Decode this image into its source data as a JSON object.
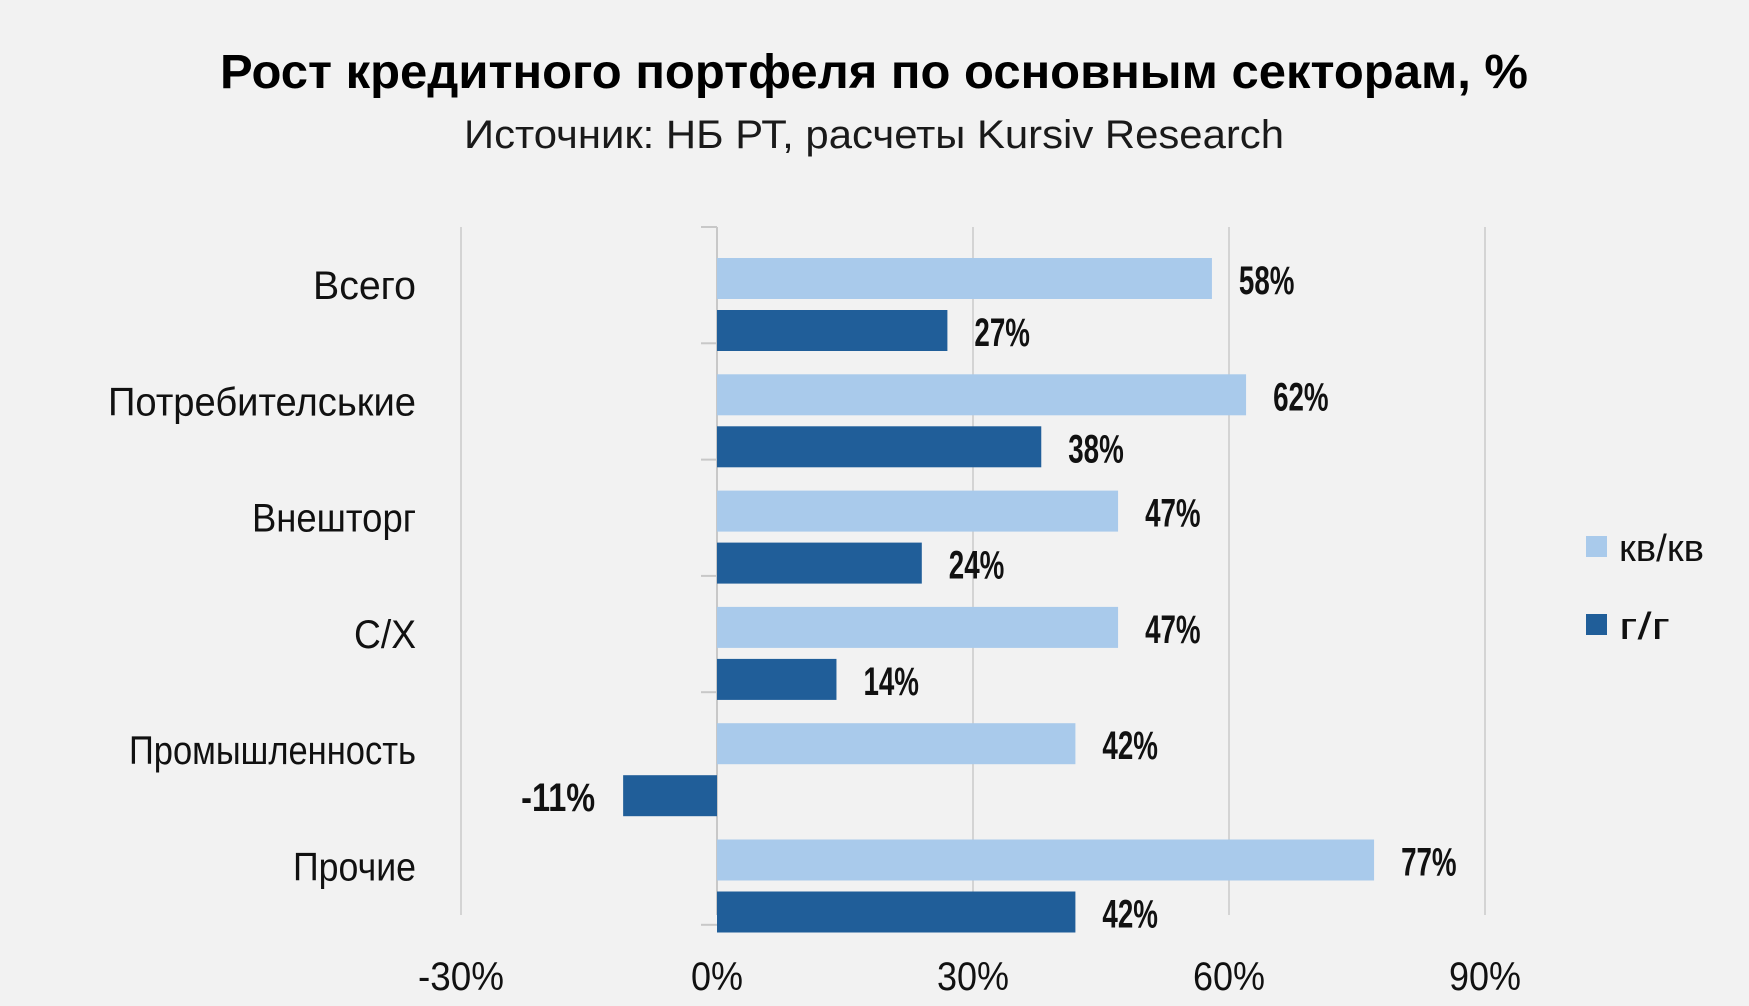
{
  "chart_data": {
    "type": "bar",
    "orientation": "horizontal",
    "title": "Рост кредитного портфеля по основным секторам, %",
    "subtitle": "Источник: НБ РТ, расчеты Kursiv Research",
    "categories": [
      "Всего",
      "Потребителськие",
      "Внешторг",
      "С/Х",
      "Промышленность",
      "Прочие"
    ],
    "series": [
      {
        "name": "кв/кв",
        "color": "#a9caeb",
        "values": [
          58,
          62,
          47,
          47,
          42,
          77
        ],
        "labels": [
          "58%",
          "62%",
          "47%",
          "47%",
          "42%",
          "77%"
        ]
      },
      {
        "name": "г/г",
        "color": "#205e99",
        "values": [
          27,
          38,
          24,
          14,
          -11,
          42
        ],
        "labels": [
          "27%",
          "38%",
          "24%",
          "14%",
          "-11%",
          "42%"
        ]
      }
    ],
    "xlim": [
      -30,
      90
    ],
    "xticks": [
      -30,
      0,
      30,
      60,
      90
    ],
    "xtick_labels": [
      "-30%",
      "0%",
      "30%",
      "60%",
      "90%"
    ],
    "grid": true,
    "legend_position": "right",
    "xlabel": "",
    "ylabel": ""
  }
}
